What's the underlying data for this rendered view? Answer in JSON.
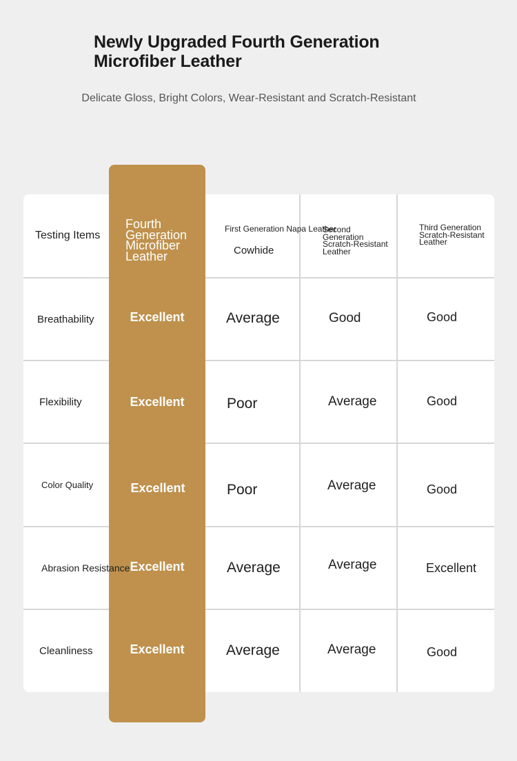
{
  "title": "Newly Upgraded Fourth Generation Microfiber Leather",
  "subtitle": "Delicate Gloss, Bright Colors, Wear-Resistant and Scratch-Resistant",
  "colors": {
    "highlight": "#bf914d",
    "background": "#efefef",
    "card": "#ffffff",
    "grid": "#d6d6d6"
  },
  "table": {
    "headers": {
      "items": "Testing Items",
      "fourth": "Fourth Generation Microfiber Leather",
      "first_a": "First Generation Napa Leather",
      "first_b": "Cowhide",
      "second": "Second Generation Scratch-Resistant Leather",
      "third": "Third Generation Scratch-Resistant Leather"
    },
    "rows": [
      {
        "item": "Breathability",
        "fourth": "Excellent",
        "first": "Average",
        "second": "Good",
        "third": "Good"
      },
      {
        "item": "Flexibility",
        "fourth": "Excellent",
        "first": "Poor",
        "second": "Average",
        "third": "Good"
      },
      {
        "item": "Color Quality",
        "fourth": "Excellent",
        "first": "Poor",
        "second": "Average",
        "third": "Good"
      },
      {
        "item": "Abrasion Resistance",
        "fourth": "Excellent",
        "first": "Average",
        "second": "Average",
        "third": "Excellent"
      },
      {
        "item": "Cleanliness",
        "fourth": "Excellent",
        "first": "Average",
        "second": "Average",
        "third": "Good"
      }
    ]
  }
}
